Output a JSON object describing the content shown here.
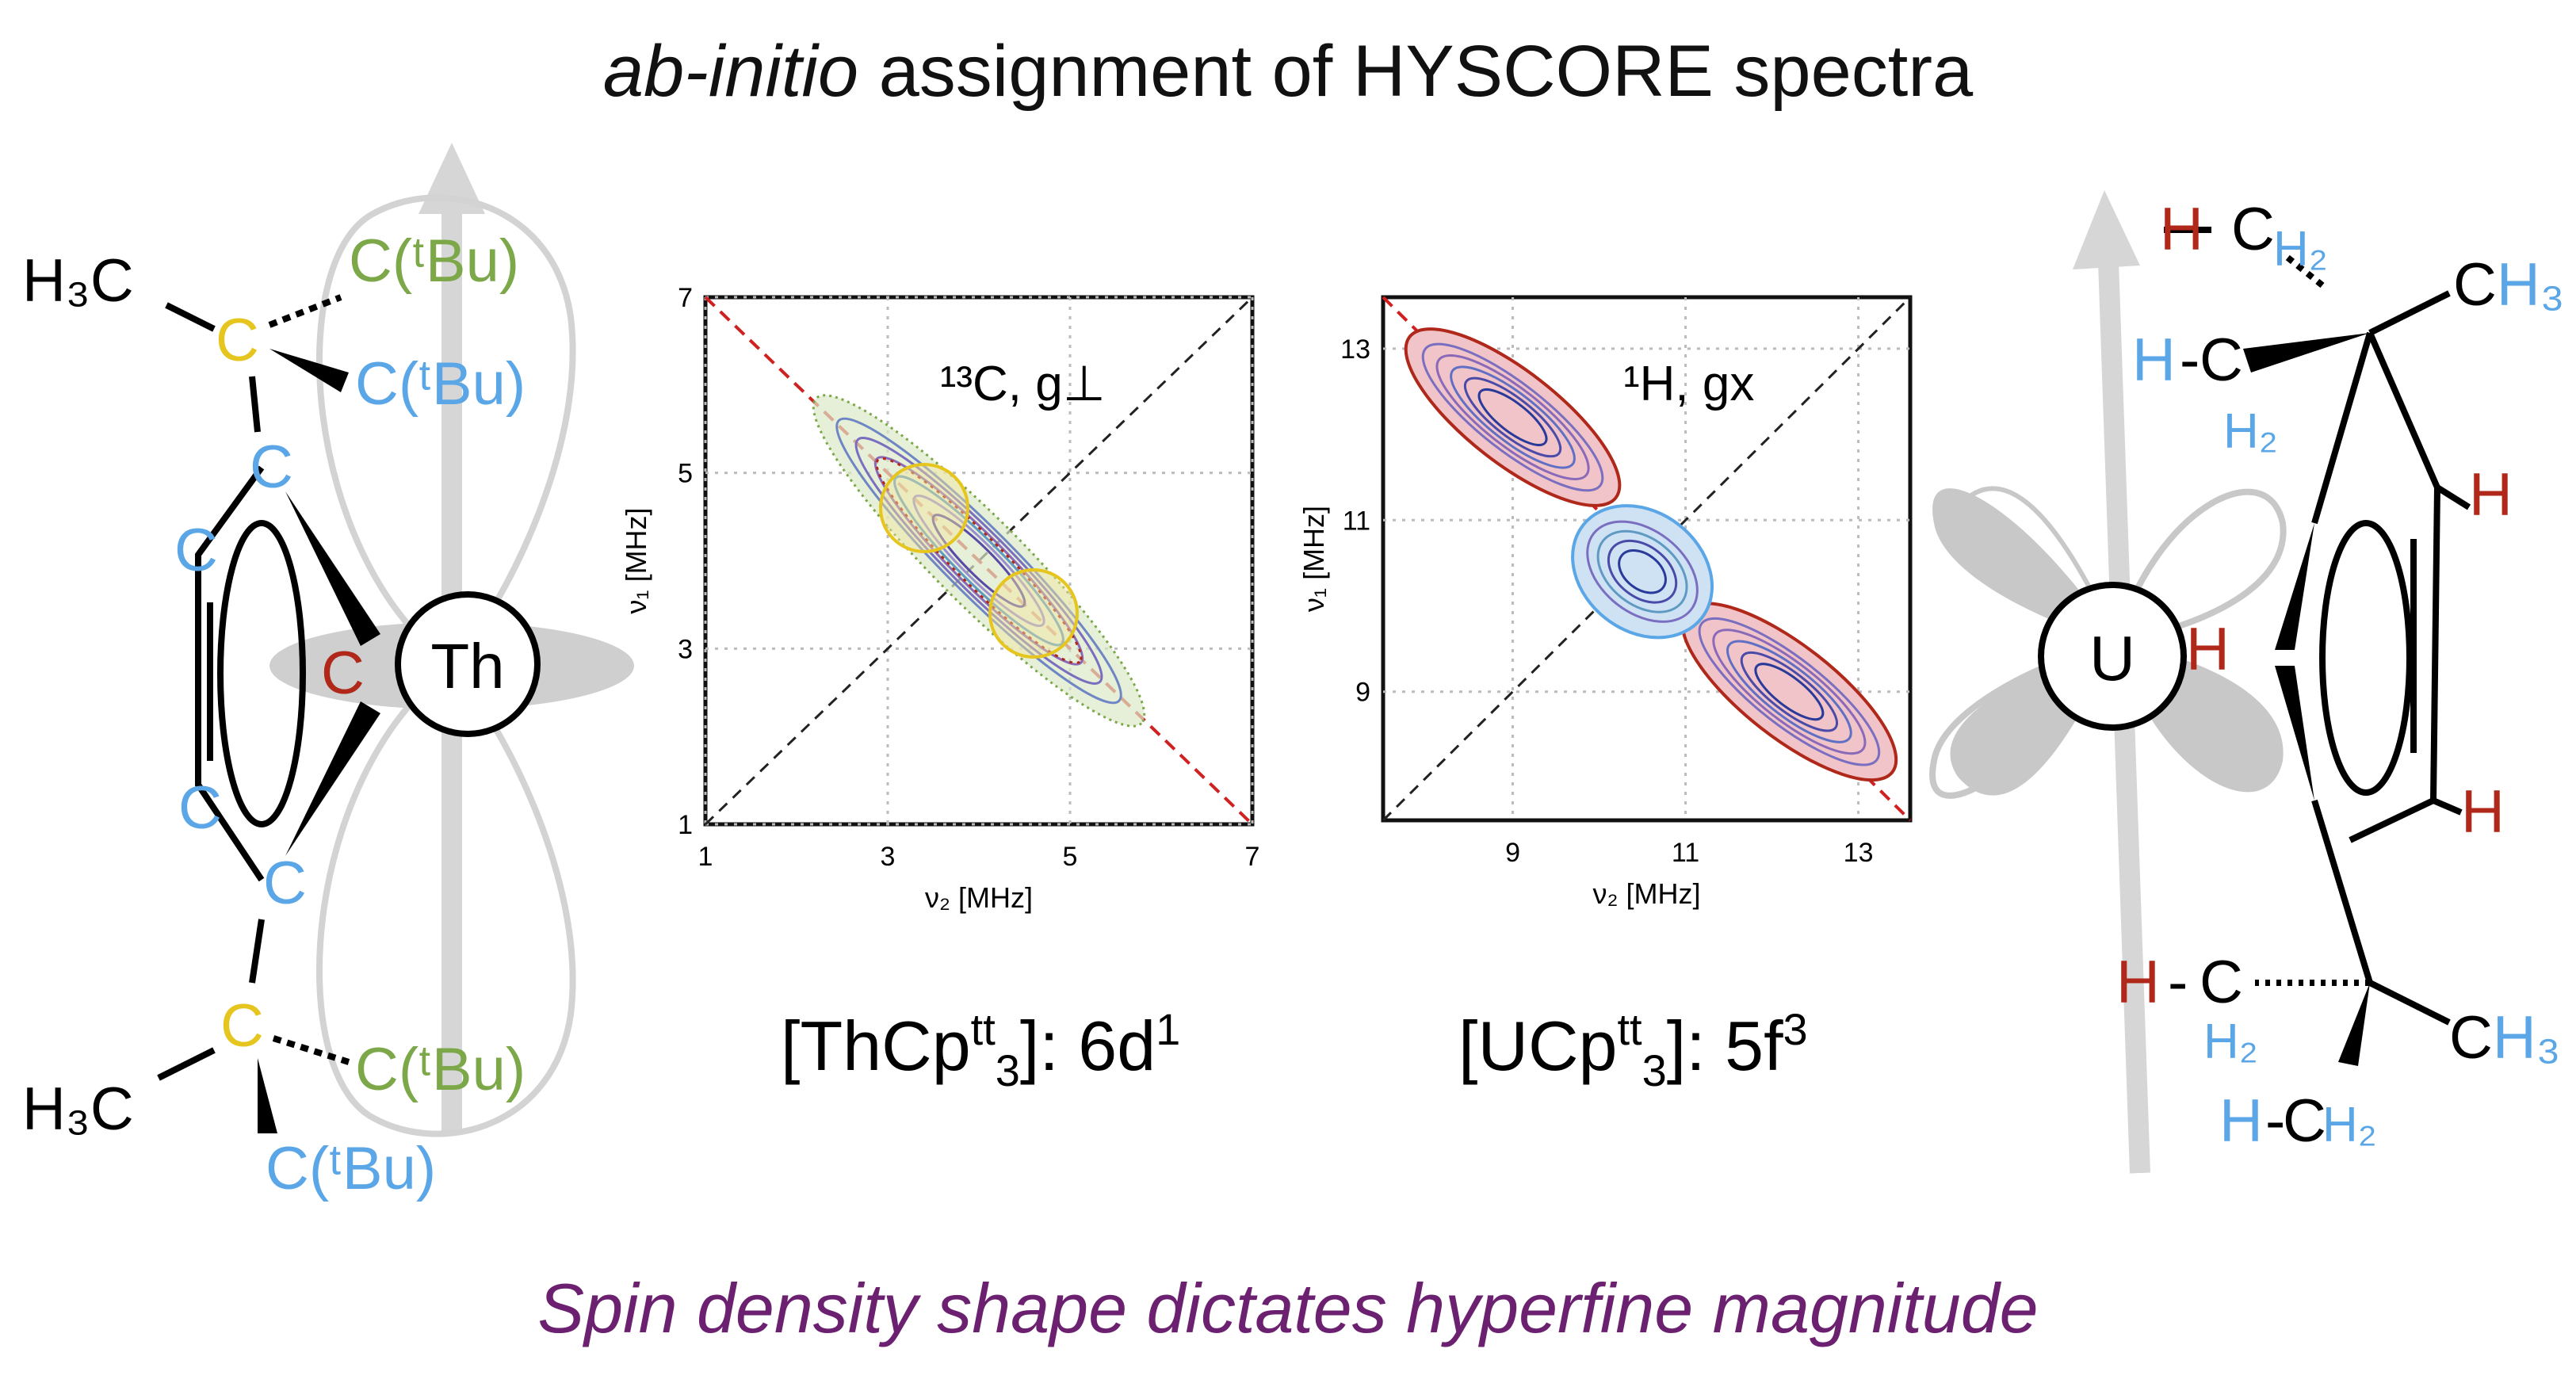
{
  "title": {
    "italic": "ab-initio",
    "rest": " assignment of HYSCORE spectra"
  },
  "bottom_text": "Spin density shape dictates hyperfine magnitude",
  "colors": {
    "blue": "#5aa6e6",
    "green": "#7ca84a",
    "yellow": "#e5c51e",
    "red": "#b0281a",
    "purple": "#6b2070",
    "gray": "#c8c8c8"
  },
  "left_molecule": {
    "metal": "Th",
    "h3c_top": "H₃C",
    "h3c_bottom": "H₃C",
    "c_tbu": "C(ᵗBu)",
    "c_yellow": "C",
    "c_ring": "C",
    "c_red": "C",
    "config": {
      "pre": "[ThCp",
      "sup": "tt",
      "sub": "3",
      "post": "]: 6d",
      "sup2": "1"
    }
  },
  "right_molecule": {
    "metal": "U",
    "h_red": "H",
    "h_blue": "H",
    "ch2": "C",
    "h2": "H₂",
    "ch3": "CH₃",
    "dash": "-",
    "config": {
      "pre": "[UCp",
      "sup": "tt",
      "sub": "3",
      "post": "]: 5f",
      "sup2": "3"
    }
  },
  "chart_data": [
    {
      "type": "contour",
      "title": "¹³C, g⊥",
      "xlabel": "ν₂ [MHz]",
      "ylabel": "ν₁ [MHz]",
      "xlim": [
        1,
        7
      ],
      "ylim": [
        1,
        7
      ],
      "xticks": [
        1,
        3,
        5,
        7
      ],
      "yticks": [
        1,
        3,
        5,
        7
      ],
      "grid": true,
      "regions": [
        {
          "center": [
            3.4,
            4.6
          ],
          "color": "#e5c51e"
        },
        {
          "center": [
            4.6,
            3.4
          ],
          "color": "#e5c51e"
        }
      ]
    },
    {
      "type": "contour",
      "title": "¹H, gx",
      "xlabel": "ν₂ [MHz]",
      "ylabel": "ν₁ [MHz]",
      "xlim": [
        7.5,
        13.6
      ],
      "ylim": [
        7.5,
        13.6
      ],
      "xticks": [
        9,
        11,
        13
      ],
      "yticks": [
        9,
        11,
        13
      ],
      "grid": true,
      "regions": [
        {
          "center": [
            9.0,
            12.1
          ],
          "color": "#b0281a"
        },
        {
          "center": [
            10.5,
            10.5
          ],
          "color": "#5aa6e6"
        },
        {
          "center": [
            12.2,
            9.0
          ],
          "color": "#b0281a"
        }
      ]
    }
  ]
}
